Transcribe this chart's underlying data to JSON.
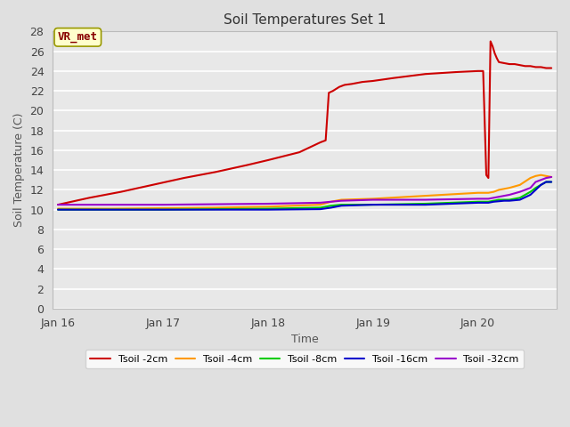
{
  "title": "Soil Temperatures Set 1",
  "xlabel": "Time",
  "ylabel": "Soil Temperature (C)",
  "ylim": [
    0,
    28
  ],
  "yticks": [
    0,
    2,
    4,
    6,
    8,
    10,
    12,
    14,
    16,
    18,
    20,
    22,
    24,
    26,
    28
  ],
  "fig_bg_color": "#e0e0e0",
  "axes_bg_color": "#e8e8e8",
  "grid_color": "#ffffff",
  "annotation_label": "VR_met",
  "annotation_box_facecolor": "#ffffcc",
  "annotation_box_edgecolor": "#999900",
  "annotation_text_color": "#880000",
  "series": [
    {
      "label": "Tsoil -2cm",
      "color": "#cc0000",
      "times": [
        0.0,
        0.3,
        0.6,
        0.9,
        1.2,
        1.5,
        1.8,
        2.0,
        2.3,
        2.5,
        2.55,
        2.58,
        2.62,
        2.65,
        2.68,
        2.73,
        2.8,
        2.85,
        2.9,
        3.0,
        3.2,
        3.5,
        3.8,
        4.0,
        4.05,
        4.08,
        4.1,
        4.12,
        4.14,
        4.16,
        4.18,
        4.2,
        4.25,
        4.3,
        4.35,
        4.4,
        4.45,
        4.5,
        4.55,
        4.6,
        4.65,
        4.7
      ],
      "values": [
        10.5,
        11.2,
        11.8,
        12.5,
        13.2,
        13.8,
        14.5,
        15.0,
        15.8,
        16.8,
        17.0,
        21.8,
        22.0,
        22.2,
        22.4,
        22.6,
        22.7,
        22.8,
        22.9,
        23.0,
        23.3,
        23.7,
        23.9,
        24.0,
        24.0,
        13.5,
        13.2,
        27.0,
        26.5,
        25.8,
        25.3,
        24.9,
        24.8,
        24.7,
        24.7,
        24.6,
        24.5,
        24.5,
        24.4,
        24.4,
        24.3,
        24.3
      ]
    },
    {
      "label": "Tsoil -4cm",
      "color": "#ff9900",
      "times": [
        0.0,
        0.5,
        1.0,
        1.5,
        2.0,
        2.5,
        2.6,
        2.7,
        3.0,
        3.5,
        4.0,
        4.05,
        4.1,
        4.15,
        4.2,
        4.3,
        4.4,
        4.5,
        4.55,
        4.6,
        4.65,
        4.7
      ],
      "values": [
        10.1,
        10.1,
        10.15,
        10.2,
        10.3,
        10.5,
        10.8,
        11.0,
        11.1,
        11.4,
        11.7,
        11.7,
        11.7,
        11.8,
        12.0,
        12.2,
        12.5,
        13.2,
        13.4,
        13.5,
        13.4,
        13.3
      ]
    },
    {
      "label": "Tsoil -8cm",
      "color": "#00cc00",
      "times": [
        0.0,
        0.5,
        1.0,
        1.5,
        2.0,
        2.5,
        2.6,
        2.7,
        3.0,
        3.5,
        4.0,
        4.05,
        4.1,
        4.15,
        4.2,
        4.25,
        4.3,
        4.4,
        4.5,
        4.55,
        4.6,
        4.65,
        4.7
      ],
      "values": [
        10.0,
        10.0,
        10.0,
        10.05,
        10.1,
        10.2,
        10.4,
        10.5,
        10.5,
        10.6,
        10.8,
        10.8,
        10.8,
        10.9,
        11.0,
        11.0,
        11.0,
        11.2,
        11.8,
        12.2,
        12.5,
        12.8,
        12.8
      ]
    },
    {
      "label": "Tsoil -16cm",
      "color": "#0000cc",
      "times": [
        0.0,
        0.5,
        1.0,
        1.5,
        2.0,
        2.5,
        2.6,
        2.7,
        3.0,
        3.5,
        4.0,
        4.05,
        4.1,
        4.15,
        4.2,
        4.25,
        4.3,
        4.4,
        4.5,
        4.55,
        4.6,
        4.65,
        4.7
      ],
      "values": [
        10.0,
        10.0,
        10.0,
        10.0,
        10.0,
        10.05,
        10.2,
        10.4,
        10.5,
        10.5,
        10.7,
        10.7,
        10.7,
        10.8,
        10.85,
        10.9,
        10.9,
        11.0,
        11.5,
        12.0,
        12.5,
        12.8,
        12.8
      ]
    },
    {
      "label": "Tsoil -32cm",
      "color": "#9900cc",
      "times": [
        0.0,
        0.5,
        1.0,
        1.5,
        2.0,
        2.5,
        2.6,
        2.7,
        3.0,
        3.5,
        4.0,
        4.05,
        4.1,
        4.15,
        4.2,
        4.25,
        4.3,
        4.4,
        4.5,
        4.55,
        4.6,
        4.65,
        4.7
      ],
      "values": [
        10.5,
        10.5,
        10.5,
        10.55,
        10.6,
        10.7,
        10.8,
        10.9,
        11.0,
        11.0,
        11.1,
        11.1,
        11.1,
        11.2,
        11.3,
        11.4,
        11.5,
        11.8,
        12.2,
        12.8,
        13.0,
        13.2,
        13.3
      ]
    }
  ],
  "xlim": [
    -0.05,
    4.75
  ],
  "xtick_positions": [
    0.0,
    1.0,
    2.0,
    3.0,
    4.0
  ],
  "xtick_labels": [
    "Jan 16",
    "Jan 17",
    "Jan 18",
    "Jan 19",
    "Jan 20"
  ],
  "title_fontsize": 11,
  "label_fontsize": 9,
  "tick_fontsize": 9,
  "legend_fontsize": 8
}
